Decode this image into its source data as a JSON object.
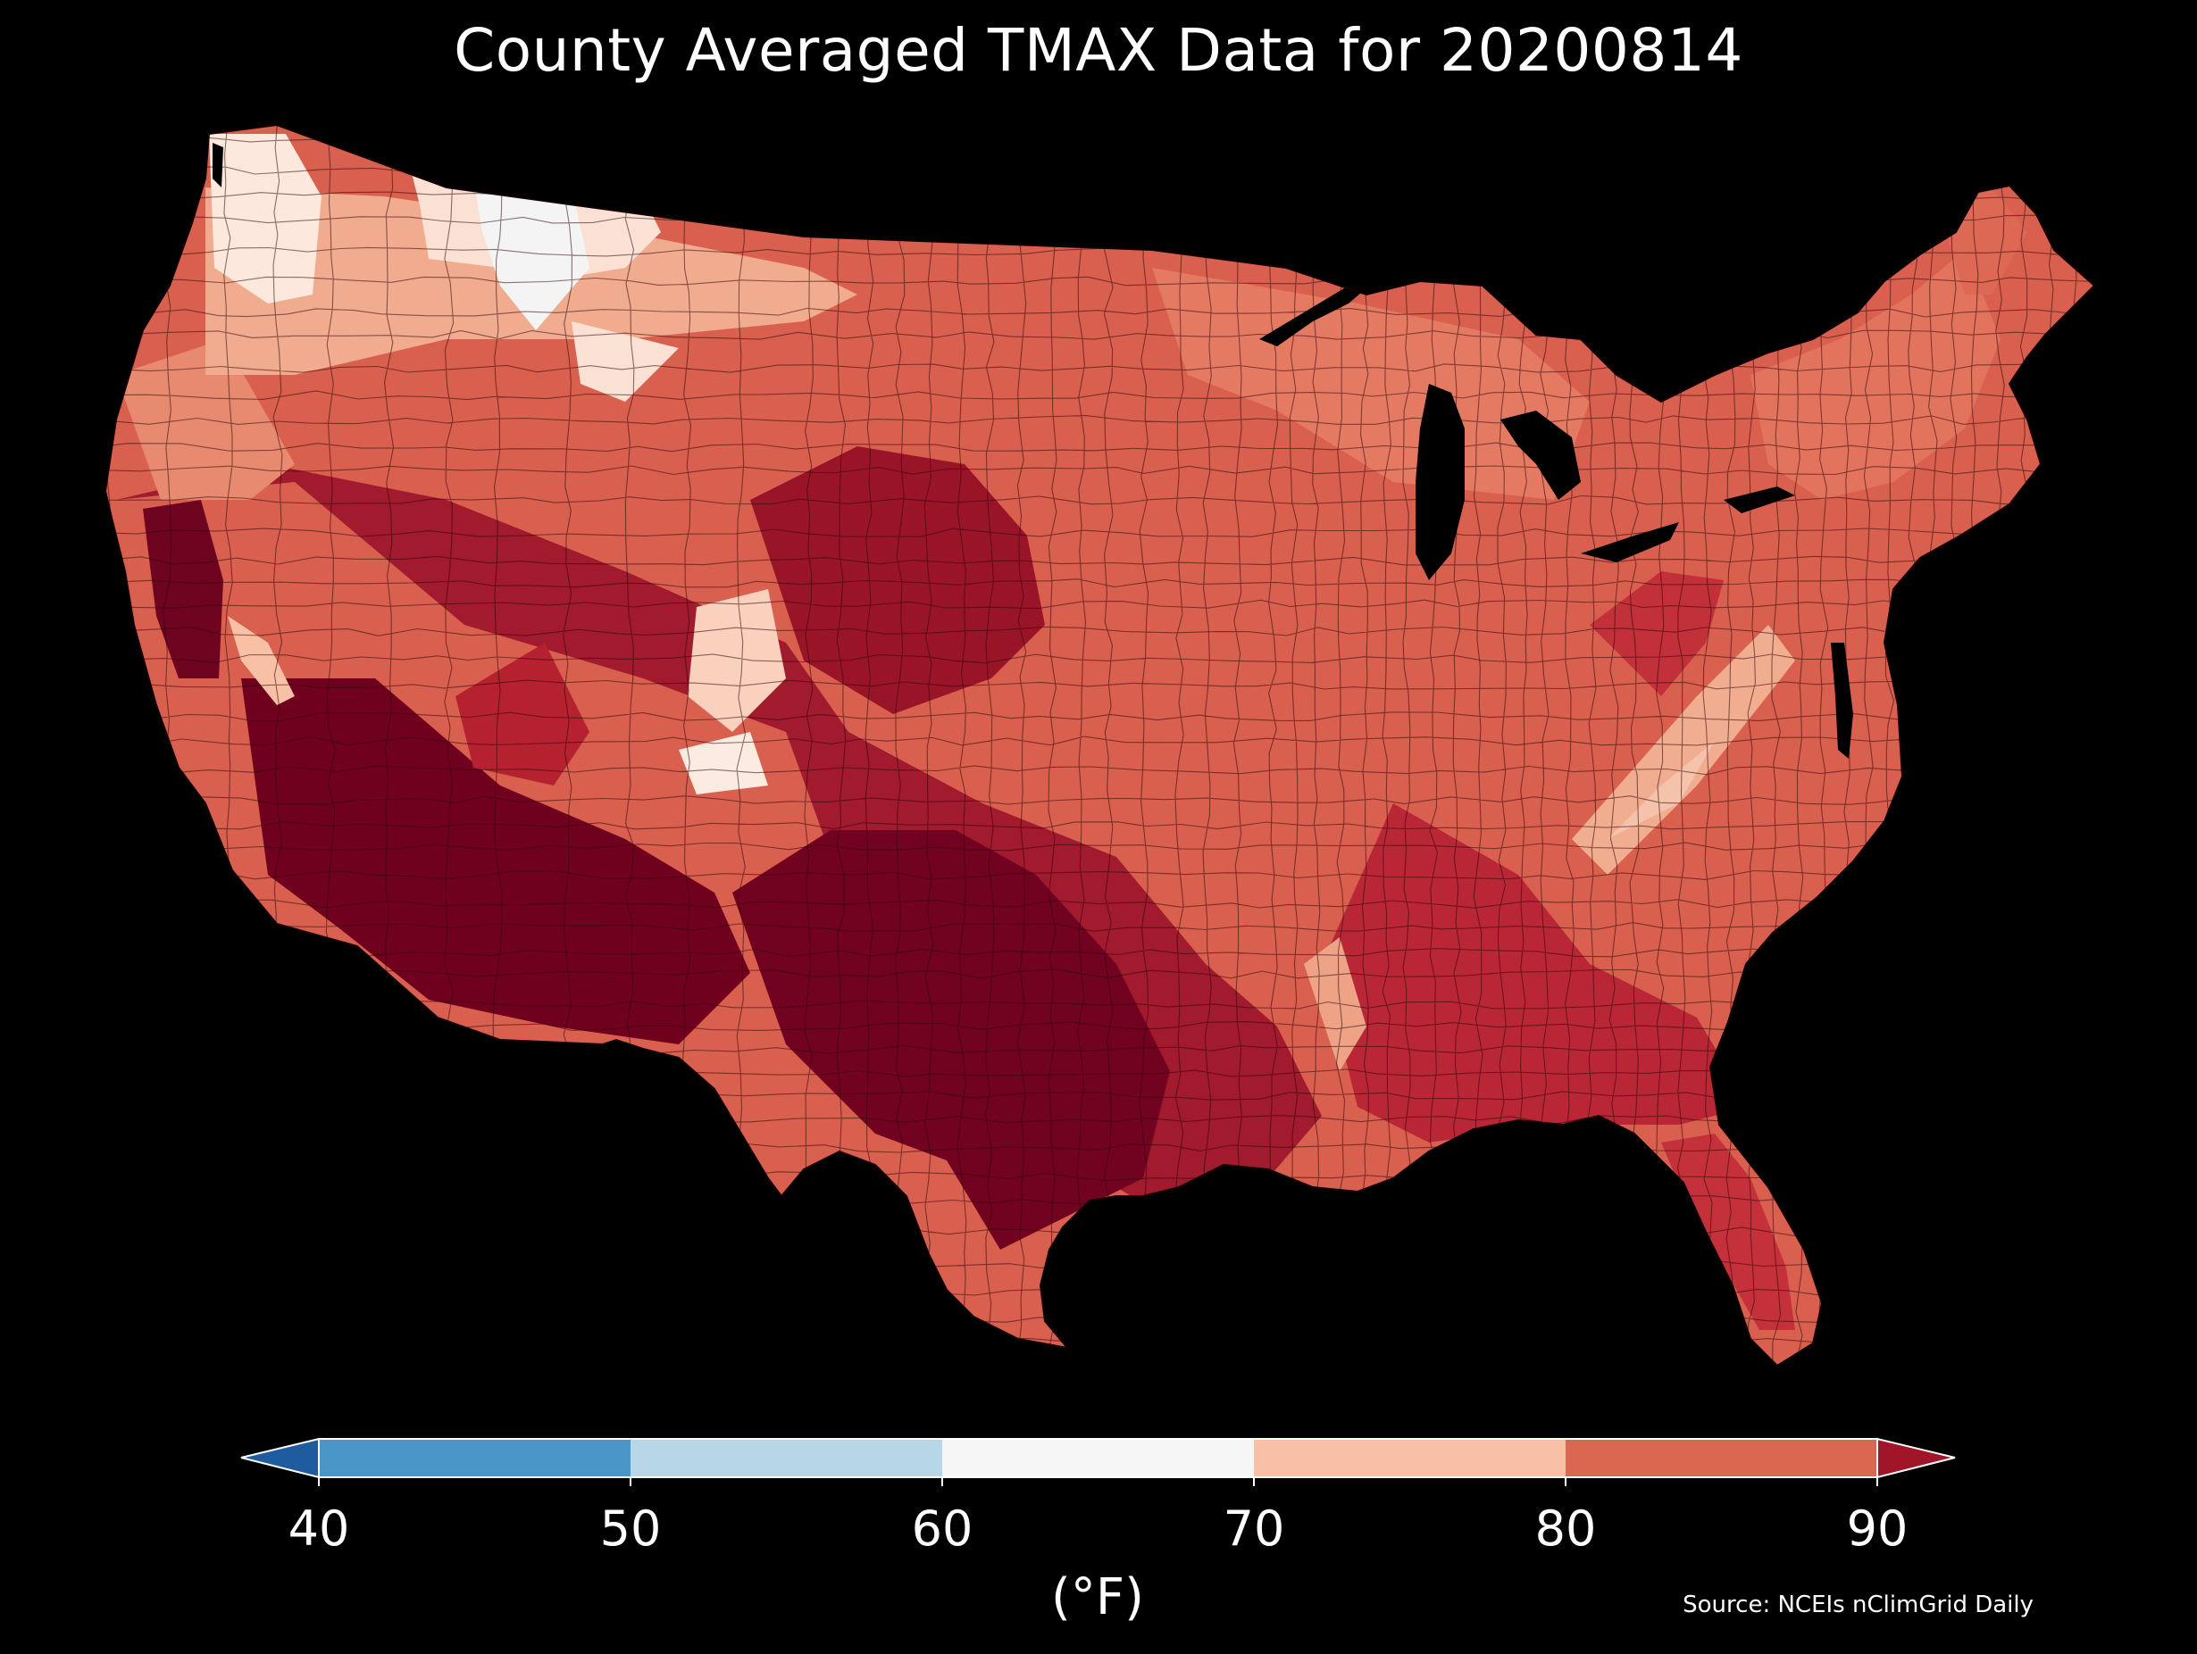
{
  "title": "County Averaged TMAX Data for 20200814",
  "source": "Source: NCEIs nClimGrid Daily",
  "colorbar": {
    "unit_label": "(°F)",
    "ticks": [
      "40",
      "50",
      "60",
      "70",
      "80",
      "90"
    ],
    "bins": [
      {
        "from": 40,
        "to": 50,
        "color": "#4a96c6"
      },
      {
        "from": 50,
        "to": 60,
        "color": "#b7d7e9"
      },
      {
        "from": 60,
        "to": 70,
        "color": "#f6f6f6"
      },
      {
        "from": 70,
        "to": 80,
        "color": "#f8c0a4"
      },
      {
        "from": 80,
        "to": 90,
        "color": "#db6753"
      }
    ],
    "under_color": "#1f5b9f",
    "over_color": "#a01527",
    "extend": "both"
  },
  "map": {
    "region": "Contiguous United States",
    "units": "counties",
    "background": "#000000",
    "ocean_and_lakes_color": "#000000",
    "county_border_color": "#3a1010",
    "palette": {
      "coolest": "#f5f5f5",
      "cool": "#fbe1d3",
      "mild": "#f5b496",
      "warm": "#e68a70",
      "hot": "#d35f4f",
      "hotter": "#c33a3f",
      "very_hot": "#a71a2d",
      "hottest": "#70011e"
    }
  }
}
